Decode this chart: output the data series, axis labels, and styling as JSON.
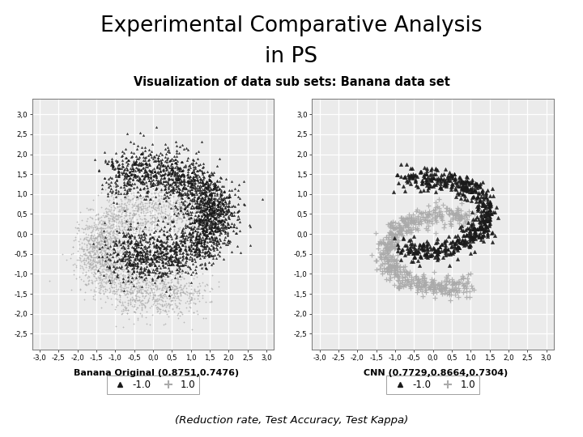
{
  "title_line1": "Experimental Comparative Analysis",
  "title_line2": "in PS",
  "subtitle": "Visualization of data sub sets: Banana data set",
  "footer": "(Reduction rate, Test Accuracy, Test Kappa)",
  "plot1_label": "Banana Original (0.8751,0.7476)",
  "plot2_label": "CNN (0.7729,0.8664,0.7304)",
  "legend_labels": [
    "-1.0",
    "1.0"
  ],
  "color_class1": "#1a1a1a",
  "color_class2": "#aaaaaa",
  "xlim": [
    -3.2,
    3.2
  ],
  "ylim": [
    -2.9,
    3.4
  ],
  "xticks": [
    -3.0,
    -2.5,
    -2.0,
    -1.5,
    -1.0,
    -0.5,
    0.0,
    0.5,
    1.0,
    1.5,
    2.0,
    2.5,
    3.0
  ],
  "yticks": [
    -2.5,
    -2.0,
    -1.5,
    -1.0,
    -0.5,
    0.0,
    0.5,
    1.0,
    1.5,
    2.0,
    2.5,
    3.0
  ],
  "n_orig_c1": 2500,
  "n_orig_c2": 2500,
  "n_cnn_c1": 600,
  "n_cnn_c2": 600,
  "seed": 42,
  "bg_color": "#ebebeb"
}
